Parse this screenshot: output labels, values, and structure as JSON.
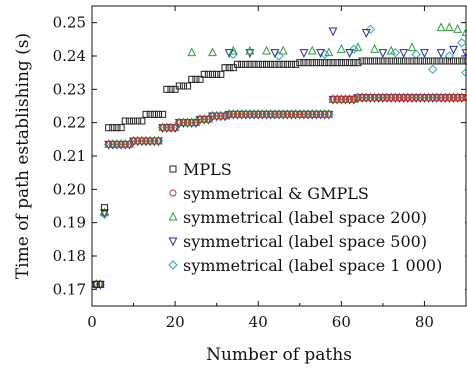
{
  "chart_data": {
    "type": "scatter",
    "title": "",
    "xlabel": "Number of paths",
    "ylabel": "Time of path establishing (s)",
    "xlim": [
      0,
      90
    ],
    "ylim": [
      0.165,
      0.255
    ],
    "xticks": [
      0,
      20,
      40,
      60,
      80
    ],
    "yticks": [
      0.17,
      0.18,
      0.19,
      0.2,
      0.21,
      0.22,
      0.23,
      0.24,
      0.25
    ],
    "ytick_labels": [
      "0.17",
      "0.18",
      "0.19",
      "0.20",
      "0.21",
      "0.22",
      "0.23",
      "0.24",
      "0.25"
    ],
    "grid": false,
    "legend_position": "inside-bottom-right",
    "series": [
      {
        "name": "MPLS",
        "marker": "square",
        "color": "#222222",
        "segments": [
          {
            "x_from": 1,
            "x_to": 2,
            "y": 0.1715
          },
          {
            "x_from": 3,
            "x_to": 3,
            "y": 0.1945
          },
          {
            "x_from": 4,
            "x_to": 7,
            "y": 0.2185
          },
          {
            "x_from": 8,
            "x_to": 12,
            "y": 0.2205
          },
          {
            "x_from": 13,
            "x_to": 17,
            "y": 0.2225
          },
          {
            "x_from": 18,
            "x_to": 20,
            "y": 0.23
          },
          {
            "x_from": 21,
            "x_to": 23,
            "y": 0.231
          },
          {
            "x_from": 24,
            "x_to": 26,
            "y": 0.233
          },
          {
            "x_from": 27,
            "x_to": 31,
            "y": 0.2345
          },
          {
            "x_from": 32,
            "x_to": 34,
            "y": 0.2365
          },
          {
            "x_from": 35,
            "x_to": 49,
            "y": 0.2375
          },
          {
            "x_from": 50,
            "x_to": 64,
            "y": 0.238
          },
          {
            "x_from": 65,
            "x_to": 90,
            "y": 0.2385
          }
        ]
      },
      {
        "name": "symmetrical & GMPLS",
        "marker": "circle",
        "color": "#d33030",
        "segments": [
          {
            "x_from": 1,
            "x_to": 2,
            "y": 0.1715
          },
          {
            "x_from": 3,
            "x_to": 3,
            "y": 0.193
          },
          {
            "x_from": 4,
            "x_to": 9,
            "y": 0.2135
          },
          {
            "x_from": 10,
            "x_to": 16,
            "y": 0.2145
          },
          {
            "x_from": 17,
            "x_to": 20,
            "y": 0.2185
          },
          {
            "x_from": 21,
            "x_to": 25,
            "y": 0.22
          },
          {
            "x_from": 26,
            "x_to": 28,
            "y": 0.221
          },
          {
            "x_from": 29,
            "x_to": 32,
            "y": 0.222
          },
          {
            "x_from": 33,
            "x_to": 57,
            "y": 0.2225
          },
          {
            "x_from": 58,
            "x_to": 63,
            "y": 0.227
          },
          {
            "x_from": 64,
            "x_to": 90,
            "y": 0.2275
          }
        ]
      },
      {
        "name": "symmetrical (label space 200)",
        "marker": "triangle-up",
        "color": "#2e9e3e",
        "segments": [
          {
            "x_from": 1,
            "x_to": 2,
            "y": 0.1715
          },
          {
            "x_from": 3,
            "x_to": 3,
            "y": 0.193
          },
          {
            "x_from": 4,
            "x_to": 9,
            "y": 0.2135
          },
          {
            "x_from": 10,
            "x_to": 16,
            "y": 0.2145
          },
          {
            "x_from": 17,
            "x_to": 20,
            "y": 0.2185
          },
          {
            "x_from": 21,
            "x_to": 25,
            "y": 0.22
          },
          {
            "x_from": 26,
            "x_to": 28,
            "y": 0.221
          },
          {
            "x_from": 29,
            "x_to": 32,
            "y": 0.222
          },
          {
            "x_from": 33,
            "x_to": 57,
            "y": 0.2225
          },
          {
            "x_from": 58,
            "x_to": 63,
            "y": 0.227
          },
          {
            "x_from": 64,
            "x_to": 90,
            "y": 0.2275
          }
        ],
        "points": [
          [
            24,
            0.241
          ],
          [
            29,
            0.241
          ],
          [
            34,
            0.2415
          ],
          [
            38,
            0.2415
          ],
          [
            42,
            0.2415
          ],
          [
            46,
            0.2415
          ],
          [
            53,
            0.2415
          ],
          [
            57,
            0.241
          ],
          [
            60,
            0.242
          ],
          [
            64,
            0.2425
          ],
          [
            68,
            0.242
          ],
          [
            72,
            0.2415
          ],
          [
            77,
            0.2425
          ],
          [
            84,
            0.2485
          ],
          [
            86,
            0.2485
          ],
          [
            88,
            0.248
          ],
          [
            90,
            0.247
          ]
        ]
      },
      {
        "name": "symmetrical (label space 500)",
        "marker": "triangle-down",
        "color": "#1f2f9a",
        "segments": [
          {
            "x_from": 1,
            "x_to": 2,
            "y": 0.1715
          },
          {
            "x_from": 3,
            "x_to": 3,
            "y": 0.193
          },
          {
            "x_from": 4,
            "x_to": 9,
            "y": 0.2135
          },
          {
            "x_from": 10,
            "x_to": 16,
            "y": 0.2145
          },
          {
            "x_from": 17,
            "x_to": 20,
            "y": 0.2185
          },
          {
            "x_from": 21,
            "x_to": 25,
            "y": 0.22
          },
          {
            "x_from": 26,
            "x_to": 28,
            "y": 0.221
          },
          {
            "x_from": 29,
            "x_to": 32,
            "y": 0.222
          },
          {
            "x_from": 33,
            "x_to": 57,
            "y": 0.2225
          },
          {
            "x_from": 58,
            "x_to": 63,
            "y": 0.227
          },
          {
            "x_from": 64,
            "x_to": 90,
            "y": 0.2275
          }
        ],
        "points": [
          [
            33,
            0.241
          ],
          [
            38,
            0.241
          ],
          [
            44,
            0.241
          ],
          [
            51,
            0.241
          ],
          [
            55,
            0.241
          ],
          [
            58,
            0.2475
          ],
          [
            62,
            0.241
          ],
          [
            66,
            0.247
          ],
          [
            70,
            0.241
          ],
          [
            75,
            0.241
          ],
          [
            80,
            0.241
          ],
          [
            84,
            0.241
          ],
          [
            87,
            0.242
          ],
          [
            90,
            0.241
          ]
        ]
      },
      {
        "name": "symmetrical (label space 1 000)",
        "marker": "diamond",
        "color": "#2aa6b8",
        "segments": [
          {
            "x_from": 1,
            "x_to": 2,
            "y": 0.1715
          },
          {
            "x_from": 3,
            "x_to": 3,
            "y": 0.1925
          },
          {
            "x_from": 4,
            "x_to": 9,
            "y": 0.2135
          },
          {
            "x_from": 10,
            "x_to": 16,
            "y": 0.2145
          },
          {
            "x_from": 17,
            "x_to": 20,
            "y": 0.2185
          },
          {
            "x_from": 21,
            "x_to": 25,
            "y": 0.22
          },
          {
            "x_from": 26,
            "x_to": 28,
            "y": 0.221
          },
          {
            "x_from": 29,
            "x_to": 32,
            "y": 0.222
          },
          {
            "x_from": 33,
            "x_to": 57,
            "y": 0.2225
          },
          {
            "x_from": 58,
            "x_to": 63,
            "y": 0.227
          },
          {
            "x_from": 64,
            "x_to": 90,
            "y": 0.2275
          }
        ],
        "points": [
          [
            34,
            0.2405
          ],
          [
            45,
            0.24
          ],
          [
            56,
            0.2405
          ],
          [
            63,
            0.242
          ],
          [
            67,
            0.248
          ],
          [
            73,
            0.241
          ],
          [
            78,
            0.2405
          ],
          [
            82,
            0.236
          ],
          [
            86,
            0.24
          ],
          [
            89,
            0.244
          ],
          [
            90,
            0.235
          ]
        ]
      }
    ]
  }
}
